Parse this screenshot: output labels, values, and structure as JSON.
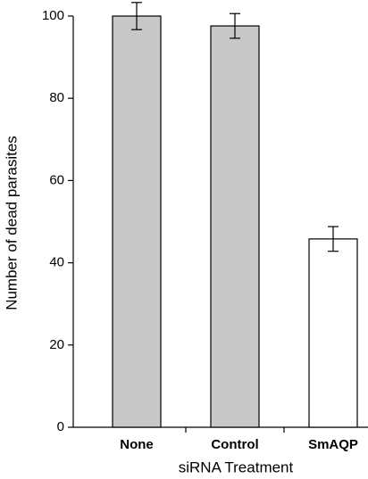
{
  "chart_data": {
    "type": "bar",
    "x_label": "siRNA Treatment",
    "y_label": "Number of dead parasites",
    "categories": [
      "None",
      "Control",
      "SmAQP"
    ],
    "values": [
      100,
      97.6,
      45.8
    ],
    "errors": [
      3.3,
      3,
      3
    ],
    "colors": [
      "#c8c8c8",
      "#c8c8c8",
      "#ffffff"
    ],
    "ylim": [
      0,
      100
    ],
    "yticks": [
      0,
      20,
      40,
      60,
      80,
      100
    ],
    "grid": false
  }
}
